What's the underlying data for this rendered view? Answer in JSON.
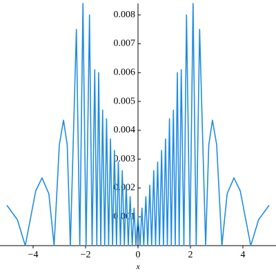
{
  "chart_data": {
    "type": "line",
    "x_label": "x",
    "series": [
      {
        "color": "#1f8ce0",
        "x": [
          -5,
          -4.6,
          -4.3,
          -3.9,
          -3.66,
          -3.4,
          -3.2,
          -3.0,
          -2.84,
          -2.7,
          -2.58,
          -2.35,
          -2.22,
          -2.1,
          -1.98,
          -1.85,
          -1.75,
          -1.65,
          -1.57,
          -1.5,
          -1.42,
          -1.35,
          -1.27,
          -1.2,
          -1.12,
          -1.05,
          -0.97,
          -0.9,
          -0.82,
          -0.75,
          -0.67,
          -0.6,
          -0.52,
          -0.45,
          -0.37,
          -0.3,
          -0.22,
          -0.15,
          -0.08,
          0,
          0.08,
          0.15,
          0.22,
          0.3,
          0.37,
          0.45,
          0.52,
          0.6,
          0.67,
          0.75,
          0.82,
          0.9,
          0.97,
          1.05,
          1.12,
          1.2,
          1.27,
          1.35,
          1.42,
          1.5,
          1.57,
          1.65,
          1.75,
          1.85,
          1.98,
          2.1,
          2.22,
          2.35,
          2.58,
          2.7,
          2.84,
          3.0,
          3.2,
          3.4,
          3.66,
          3.9,
          4.3,
          4.6,
          5
        ],
        "values": [
          0.0014,
          0.0009,
          0,
          0.0019,
          0.00235,
          0.0018,
          0,
          0.0035,
          0.00435,
          0.0035,
          0,
          0.0075,
          0,
          0.0084,
          0,
          0.008,
          0,
          0.0061,
          0,
          0.006,
          0,
          0.0047,
          0,
          0.0044,
          0,
          0.0037,
          0,
          0.0033,
          0,
          0.0029,
          0,
          0.0026,
          0,
          0.0021,
          0,
          0.0017,
          0,
          0.0013,
          0,
          0.001,
          0,
          0.0013,
          0,
          0.0017,
          0,
          0.0021,
          0,
          0.0026,
          0,
          0.0029,
          0,
          0.0033,
          0,
          0.0037,
          0,
          0.0044,
          0,
          0.0047,
          0,
          0.006,
          0,
          0.0061,
          0,
          0.008,
          0,
          0.0084,
          0,
          0.0075,
          0,
          0.0035,
          0.00435,
          0.0035,
          0,
          0.0018,
          0.00235,
          0.0019,
          0,
          0.0009,
          0.0014
        ]
      }
    ],
    "xlim": [
      -5,
      5
    ],
    "ylim": [
      0,
      0.0084
    ],
    "xticks": [
      {
        "value": -4,
        "label": "−4"
      },
      {
        "value": -2,
        "label": "−2"
      },
      0,
      2,
      4
    ],
    "yticks": [
      0.001,
      0.002,
      0.003,
      0.004,
      0.005,
      0.006,
      0.007,
      0.008
    ]
  }
}
